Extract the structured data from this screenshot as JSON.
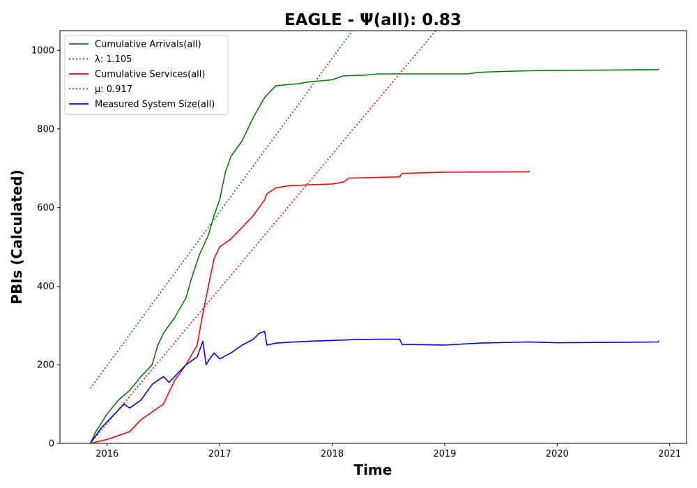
{
  "chart_data": {
    "type": "line",
    "title": "EAGLE -  Ψ(all): 0.83",
    "xlabel": "Time",
    "ylabel": "PBIs (Calculated)",
    "xlim": [
      2015.58,
      2021.15
    ],
    "ylim": [
      0,
      1050
    ],
    "x_ticks": [
      2016,
      2017,
      2018,
      2019,
      2020,
      2021
    ],
    "x_tick_labels": [
      "2016",
      "2017",
      "2018",
      "2019",
      "2020",
      "2021"
    ],
    "y_ticks": [
      0,
      200,
      400,
      600,
      800,
      1000
    ],
    "y_tick_labels": [
      "0",
      "200",
      "400",
      "600",
      "800",
      "1000"
    ],
    "grid": false,
    "legend_position": "top-left",
    "series": [
      {
        "name": "Cumulative Arrivals(all)",
        "color": "#008000",
        "style": "solid",
        "points": [
          [
            2015.85,
            0
          ],
          [
            2015.9,
            30
          ],
          [
            2016.0,
            75
          ],
          [
            2016.1,
            110
          ],
          [
            2016.2,
            135
          ],
          [
            2016.3,
            170
          ],
          [
            2016.4,
            200
          ],
          [
            2016.45,
            250
          ],
          [
            2016.5,
            280
          ],
          [
            2016.6,
            320
          ],
          [
            2016.7,
            370
          ],
          [
            2016.75,
            420
          ],
          [
            2016.82,
            480
          ],
          [
            2016.9,
            530
          ],
          [
            2016.95,
            580
          ],
          [
            2017.0,
            620
          ],
          [
            2017.05,
            690
          ],
          [
            2017.1,
            730
          ],
          [
            2017.2,
            770
          ],
          [
            2017.3,
            830
          ],
          [
            2017.4,
            880
          ],
          [
            2017.5,
            910
          ],
          [
            2017.7,
            915
          ],
          [
            2017.8,
            920
          ],
          [
            2018.0,
            925
          ],
          [
            2018.1,
            935
          ],
          [
            2018.3,
            937
          ],
          [
            2018.4,
            940
          ],
          [
            2018.6,
            940
          ],
          [
            2019.2,
            940
          ],
          [
            2019.3,
            944
          ],
          [
            2019.5,
            946
          ],
          [
            2019.75,
            948
          ],
          [
            2020.0,
            949
          ],
          [
            2020.5,
            950
          ],
          [
            2020.9,
            951
          ],
          [
            2020.9,
            953
          ]
        ]
      },
      {
        "name": "λ: 1.105",
        "color": "#008000",
        "style": "dotted",
        "points": [
          [
            2015.85,
            140
          ],
          [
            2018.18,
            1050
          ]
        ]
      },
      {
        "name": "Cumulative Services(all)",
        "color": "#ff0000",
        "style": "solid",
        "points": [
          [
            2015.85,
            0
          ],
          [
            2016.0,
            10
          ],
          [
            2016.1,
            20
          ],
          [
            2016.2,
            30
          ],
          [
            2016.3,
            60
          ],
          [
            2016.4,
            80
          ],
          [
            2016.5,
            100
          ],
          [
            2016.55,
            130
          ],
          [
            2016.6,
            160
          ],
          [
            2016.7,
            200
          ],
          [
            2016.8,
            250
          ],
          [
            2016.85,
            330
          ],
          [
            2016.9,
            400
          ],
          [
            2016.95,
            470
          ],
          [
            2017.0,
            500
          ],
          [
            2017.1,
            520
          ],
          [
            2017.2,
            550
          ],
          [
            2017.3,
            580
          ],
          [
            2017.35,
            600
          ],
          [
            2017.4,
            620
          ],
          [
            2017.42,
            635
          ],
          [
            2017.5,
            650
          ],
          [
            2017.6,
            655
          ],
          [
            2017.8,
            658
          ],
          [
            2018.0,
            660
          ],
          [
            2018.1,
            665
          ],
          [
            2018.15,
            675
          ],
          [
            2018.3,
            676
          ],
          [
            2018.6,
            678
          ],
          [
            2018.62,
            687
          ],
          [
            2019.0,
            690
          ],
          [
            2019.75,
            691
          ],
          [
            2019.75,
            694
          ]
        ]
      },
      {
        "name": "μ: 0.917",
        "color": "#ff0000",
        "style": "dotted",
        "points": [
          [
            2015.85,
            0
          ],
          [
            2018.92,
            1050
          ]
        ]
      },
      {
        "name": "Measured System Size(all)",
        "color": "#0000ff",
        "style": "solid",
        "points": [
          [
            2015.85,
            0
          ],
          [
            2015.95,
            40
          ],
          [
            2016.05,
            70
          ],
          [
            2016.15,
            100
          ],
          [
            2016.2,
            90
          ],
          [
            2016.3,
            110
          ],
          [
            2016.35,
            130
          ],
          [
            2016.4,
            150
          ],
          [
            2016.5,
            170
          ],
          [
            2016.55,
            155
          ],
          [
            2016.6,
            170
          ],
          [
            2016.7,
            200
          ],
          [
            2016.8,
            220
          ],
          [
            2016.85,
            260
          ],
          [
            2016.88,
            200
          ],
          [
            2016.9,
            210
          ],
          [
            2016.95,
            230
          ],
          [
            2017.0,
            215
          ],
          [
            2017.1,
            230
          ],
          [
            2017.2,
            250
          ],
          [
            2017.3,
            265
          ],
          [
            2017.35,
            280
          ],
          [
            2017.4,
            285
          ],
          [
            2017.42,
            250
          ],
          [
            2017.5,
            255
          ],
          [
            2017.6,
            257
          ],
          [
            2017.8,
            260
          ],
          [
            2018.0,
            262
          ],
          [
            2018.2,
            264
          ],
          [
            2018.4,
            265
          ],
          [
            2018.6,
            265
          ],
          [
            2018.62,
            252
          ],
          [
            2019.0,
            250
          ],
          [
            2019.3,
            255
          ],
          [
            2019.75,
            258
          ],
          [
            2020.0,
            256
          ],
          [
            2020.5,
            257
          ],
          [
            2020.9,
            258
          ],
          [
            2020.9,
            261
          ]
        ]
      }
    ]
  }
}
